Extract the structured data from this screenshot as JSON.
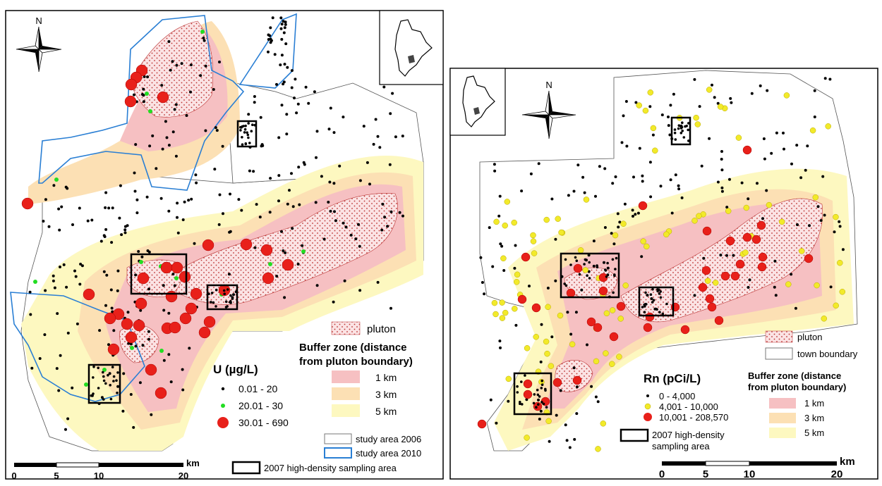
{
  "left_map": {
    "north_label": "N",
    "pluton_label": "pluton",
    "buffer_title_1": "Buffer zone (distance",
    "buffer_title_2": "from pluton boundary)",
    "buffer_items": [
      "1 km",
      "3 km",
      "5 km"
    ],
    "buffer_colors": [
      "#f6c0c2",
      "#fce0b4",
      "#fdf8c0"
    ],
    "legend_title": "U (µg/L)",
    "classes": [
      {
        "label": "0.01 - 20",
        "color": "#000000"
      },
      {
        "label": "20.01 - 30",
        "color": "#22dd22"
      },
      {
        "label": "30.01 - 690",
        "color": "#e8201a"
      }
    ],
    "study_2006": "study area 2006",
    "study_2010": "study area 2010",
    "study_2010_color": "#2a7fd4",
    "sampling_area": "2007 high-density sampling area",
    "scale_unit": "km",
    "scale_ticks": [
      "0",
      "5",
      "10",
      "20"
    ]
  },
  "right_map": {
    "north_label": "N",
    "pluton_label": "pluton",
    "town_boundary": "town boundary",
    "legend_title": "Rn (pCi/L)",
    "classes": [
      {
        "label": "0 - 4,000",
        "color": "#000000"
      },
      {
        "label": "4,001 - 10,000",
        "color": "#f2ea2a"
      },
      {
        "label": "10,001 - 208,570",
        "color": "#e8201a"
      }
    ],
    "sampling_area_1": "2007 high-density",
    "sampling_area_2": "sampling area",
    "buffer_title_1": "Buffer zone (distance",
    "buffer_title_2": "from pluton boundary)",
    "buffer_items": [
      "1 km",
      "3 km",
      "5 km"
    ],
    "scale_unit": "km",
    "scale_ticks": [
      "0",
      "5",
      "10",
      "20"
    ]
  }
}
